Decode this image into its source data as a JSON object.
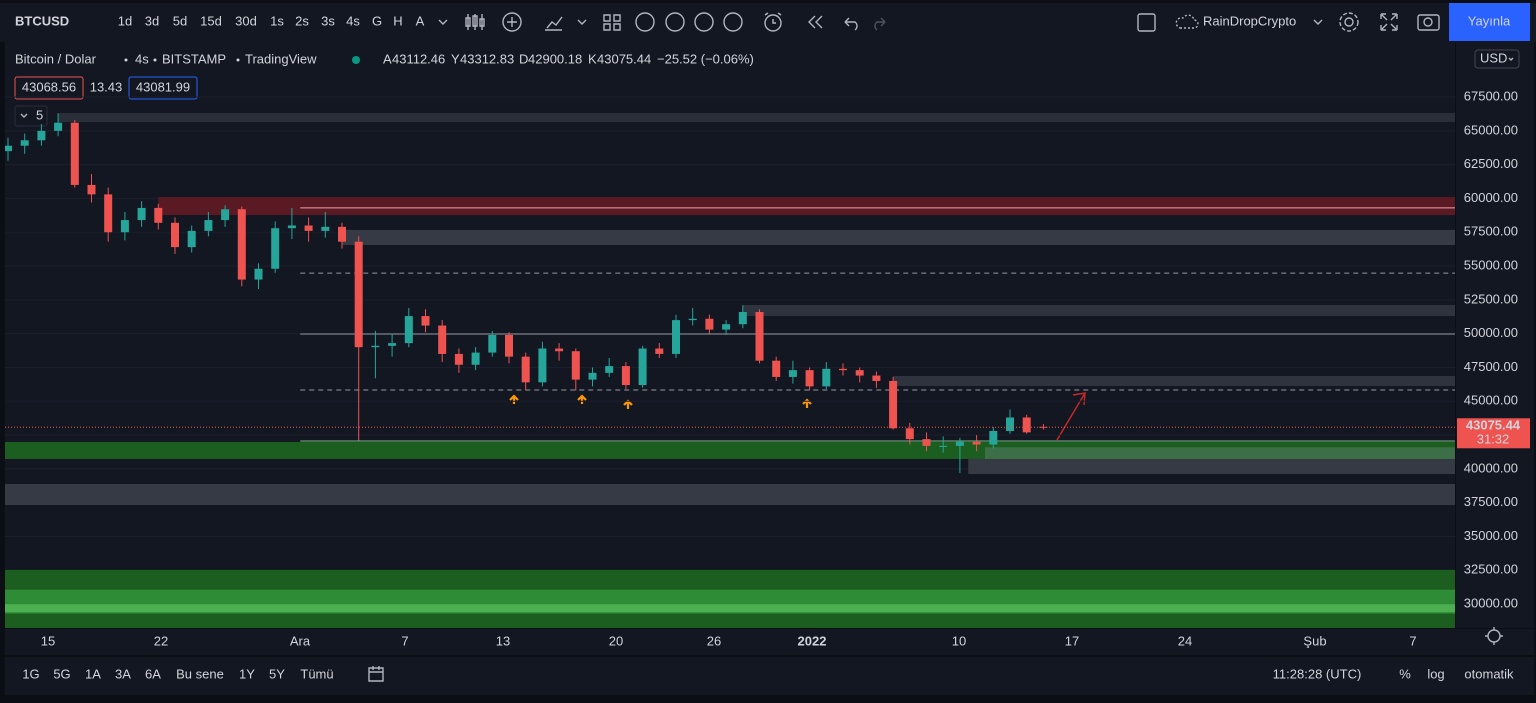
{
  "toolbar": {
    "symbol": "BTCUSD",
    "intervals": [
      "1d",
      "3d",
      "5d",
      "15d",
      "30d",
      "1s",
      "2s",
      "3s",
      "4s",
      "G",
      "H",
      "A"
    ],
    "active_interval_index": 8,
    "account": "RainDropCrypto",
    "publish": "Yayınla"
  },
  "legend": {
    "name": "Bitcoin / Dolar",
    "interval": "4s",
    "exchange": "BITSTAMP",
    "source": "TradingView",
    "ohlc_labels": [
      "A",
      "Y",
      "D",
      "K"
    ],
    "change": "−25.52 (−0.06%)",
    "bid": 43068.56,
    "spread": 13.43,
    "ask": 43081.99,
    "indicators_count": "5"
  },
  "chart_data": {
    "type": "candlestick",
    "up_color": "#26a69a",
    "down_color": "#ef5350",
    "candles": [
      [
        63500,
        64500,
        62800,
        63900
      ],
      [
        63900,
        64800,
        63300,
        64300
      ],
      [
        64300,
        65500,
        63900,
        65000
      ],
      [
        65000,
        66300,
        64600,
        65600
      ],
      [
        65600,
        65800,
        60800,
        61000
      ],
      [
        61000,
        61800,
        59700,
        60300
      ],
      [
        60300,
        60800,
        56800,
        57500
      ],
      [
        57500,
        59000,
        56900,
        58400
      ],
      [
        58400,
        59800,
        57900,
        59300
      ],
      [
        59300,
        59600,
        57700,
        58200
      ],
      [
        58200,
        58600,
        55900,
        56400
      ],
      [
        56400,
        58000,
        56000,
        57600
      ],
      [
        57600,
        59000,
        57200,
        58400
      ],
      [
        58400,
        59500,
        57900,
        59200
      ],
      [
        59200,
        59400,
        53500,
        54000
      ],
      [
        54000,
        55200,
        53300,
        54800
      ],
      [
        54800,
        58300,
        54500,
        57800
      ],
      [
        57800,
        59300,
        57000,
        58000
      ],
      [
        58000,
        58600,
        56800,
        57600
      ],
      [
        57600,
        59000,
        57100,
        57900
      ],
      [
        57900,
        58200,
        56300,
        56800
      ],
      [
        56800,
        57200,
        42100,
        49000
      ],
      [
        49000,
        50200,
        46700,
        49100
      ],
      [
        49100,
        50000,
        48300,
        49300
      ],
      [
        49300,
        51900,
        49000,
        51300
      ],
      [
        51300,
        51800,
        50100,
        50600
      ],
      [
        50600,
        51000,
        47900,
        48500
      ],
      [
        48500,
        48900,
        47100,
        47700
      ],
      [
        47700,
        49000,
        47300,
        48600
      ],
      [
        48600,
        50200,
        48300,
        49900
      ],
      [
        49900,
        50100,
        47800,
        48300
      ],
      [
        48300,
        48600,
        45800,
        46400
      ],
      [
        46400,
        49400,
        46100,
        48900
      ],
      [
        48900,
        49300,
        48000,
        48700
      ],
      [
        48700,
        48900,
        45800,
        46600
      ],
      [
        46600,
        47500,
        46100,
        47100
      ],
      [
        47100,
        48200,
        46800,
        47600
      ],
      [
        47600,
        47900,
        45900,
        46200
      ],
      [
        46200,
        49100,
        46000,
        48900
      ],
      [
        48900,
        49300,
        48200,
        48500
      ],
      [
        48500,
        51400,
        48200,
        51000
      ],
      [
        51000,
        51900,
        50600,
        51100
      ],
      [
        51100,
        51400,
        50000,
        50300
      ],
      [
        50300,
        51000,
        49900,
        50700
      ],
      [
        50700,
        52100,
        50400,
        51600
      ],
      [
        51600,
        51800,
        47800,
        48000
      ],
      [
        48000,
        48300,
        46500,
        46800
      ],
      [
        46800,
        48000,
        46300,
        47300
      ],
      [
        47300,
        47500,
        45800,
        46100
      ],
      [
        46100,
        47900,
        45900,
        47400
      ],
      [
        47400,
        47800,
        46900,
        47300
      ],
      [
        47300,
        47500,
        46400,
        46900
      ],
      [
        46900,
        47200,
        46000,
        46500
      ],
      [
        46500,
        46800,
        42900,
        43000
      ],
      [
        43000,
        43400,
        41800,
        42200
      ],
      [
        42200,
        42700,
        41300,
        41700
      ],
      [
        41700,
        42400,
        41200,
        41700
      ],
      [
        41700,
        42300,
        39700,
        42000
      ],
      [
        42000,
        42500,
        41300,
        41800
      ],
      [
        41800,
        43100,
        41500,
        42800
      ],
      [
        42800,
        44400,
        42600,
        43800
      ],
      [
        43800,
        44000,
        42600,
        42700
      ],
      [
        43112.46,
        43312.83,
        42900.18,
        43075.44
      ]
    ],
    "ylim": [
      28230,
      71570
    ],
    "yticks": [
      {
        "value": 30000,
        "label": "30000.00"
      },
      {
        "value": 32500,
        "label": "32500.00"
      },
      {
        "value": 35000,
        "label": "35000.00"
      },
      {
        "value": 37500,
        "label": "37500.00"
      },
      {
        "value": 40000,
        "label": "40000.00"
      },
      {
        "value": 42500,
        "label": "42500.00"
      },
      {
        "value": 45000,
        "label": "45000.00"
      },
      {
        "value": 47500,
        "label": "47500.00"
      },
      {
        "value": 50000,
        "label": "50000.00"
      },
      {
        "value": 52500,
        "label": "52500.00"
      },
      {
        "value": 55000,
        "label": "55000.00"
      },
      {
        "value": 57500,
        "label": "57500.00"
      },
      {
        "value": 60000,
        "label": "60000.00"
      },
      {
        "value": 62500,
        "label": "62500.00"
      },
      {
        "value": 65000,
        "label": "65000.00"
      },
      {
        "value": 67500,
        "label": "67500.00"
      }
    ],
    "currency": "USD",
    "x_labels": [
      "15",
      "22",
      "Ara",
      "7",
      "13",
      "20",
      "26",
      "2022",
      "10",
      "17",
      "24",
      "Şub",
      "7"
    ],
    "zones": [
      {
        "from": 65650,
        "to": 66320,
        "start": 3,
        "color": "#2a2e39"
      },
      {
        "from": 58770,
        "to": 60100,
        "start": 9,
        "color": "#5a1a24"
      },
      {
        "from": 56560,
        "to": 57670,
        "start": 20,
        "color": "#363a45"
      },
      {
        "from": 51300,
        "to": 52120,
        "start": 44,
        "color": "#2f333e"
      },
      {
        "from": 46130,
        "to": 46870,
        "start": 53,
        "color": "#2f333e"
      },
      {
        "from": 40730,
        "to": 41990,
        "start": 0,
        "color": "#1b5e20"
      },
      {
        "from": 40730,
        "to": 41600,
        "start": 58.5,
        "color": "#3c6e47"
      },
      {
        "from": 39620,
        "to": 40730,
        "start": 57.5,
        "color": "#363a45"
      },
      {
        "from": 37330,
        "to": 38880,
        "start": 0,
        "color": "#363a45"
      },
      {
        "from": 28230,
        "to": 32530,
        "start": 0,
        "color": "#1b5e20"
      },
      {
        "from": 29300,
        "to": 31060,
        "start": 0,
        "color": "#2e8b36"
      },
      {
        "from": 29400,
        "to": 29990,
        "start": 0,
        "color": "#4caf50"
      }
    ],
    "levels": [
      {
        "price": 59300,
        "start": 17.5,
        "style": "solid",
        "color": "#f0a0a8"
      },
      {
        "price": 54480,
        "start": 17.5,
        "style": "dashed",
        "color": "#9598a1"
      },
      {
        "price": 49970,
        "start": 17.5,
        "style": "solid",
        "color": "#9598a1"
      },
      {
        "price": 45830,
        "start": 17.5,
        "style": "dashed",
        "color": "#9598a1"
      },
      {
        "price": 42060,
        "start": 17.5,
        "style": "solid",
        "color": "#7fbf8a"
      }
    ],
    "countdown": "31:32"
  },
  "bottom_bar": {
    "ranges": [
      "1G",
      "5G",
      "1A",
      "3A",
      "6A",
      "Bu sene",
      "1Y",
      "5Y",
      "Tümü"
    ],
    "time": "11:28:28 (UTC)",
    "percent": "%",
    "log": "log",
    "auto": "otomatik"
  }
}
